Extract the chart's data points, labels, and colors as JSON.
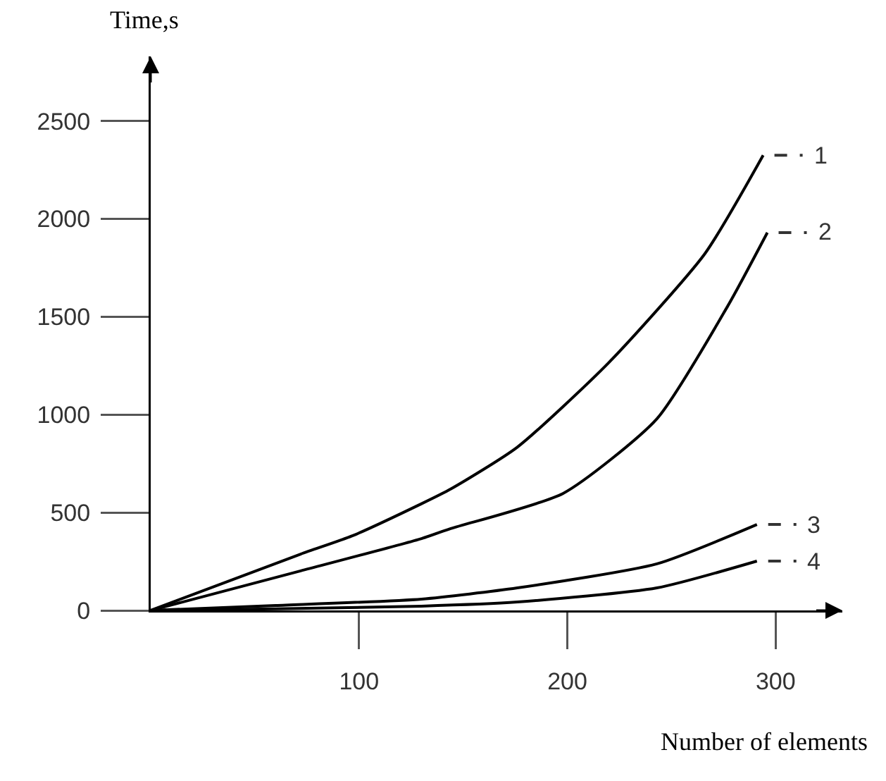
{
  "chart_data": {
    "type": "line",
    "xlabel": "Number of elements",
    "ylabel": "Time,s",
    "xlim": [
      0,
      332
    ],
    "xticks": [
      100,
      200,
      300
    ],
    "ylim": [
      0,
      2830
    ],
    "yticks": [
      0,
      500,
      1000,
      1500,
      2000,
      2500
    ],
    "grid": false,
    "legend": false,
    "marker": "none",
    "line_style": "solid",
    "series": [
      {
        "name": "1",
        "color": "#000000",
        "x": [
          0,
          72,
          97,
          130,
          144,
          176,
          220,
          266,
          294
        ],
        "values": [
          0,
          288,
          382,
          545,
          620,
          834,
          1267,
          1822,
          2325
        ]
      },
      {
        "name": "2",
        "color": "#000000",
        "x": [
          0,
          72,
          130,
          144,
          198,
          243,
          277,
          296
        ],
        "values": [
          0,
          202,
          367,
          418,
          598,
          979,
          1555,
          1930
        ]
      },
      {
        "name": "3",
        "color": "#000000",
        "x": [
          0,
          60,
          130,
          176,
          243,
          291
        ],
        "values": [
          0,
          25,
          58,
          115,
          238,
          439
        ]
      },
      {
        "name": "4",
        "color": "#000000",
        "x": [
          0,
          60,
          130,
          176,
          243,
          291
        ],
        "values": [
          0,
          8,
          22,
          43,
          115,
          252
        ]
      }
    ]
  }
}
